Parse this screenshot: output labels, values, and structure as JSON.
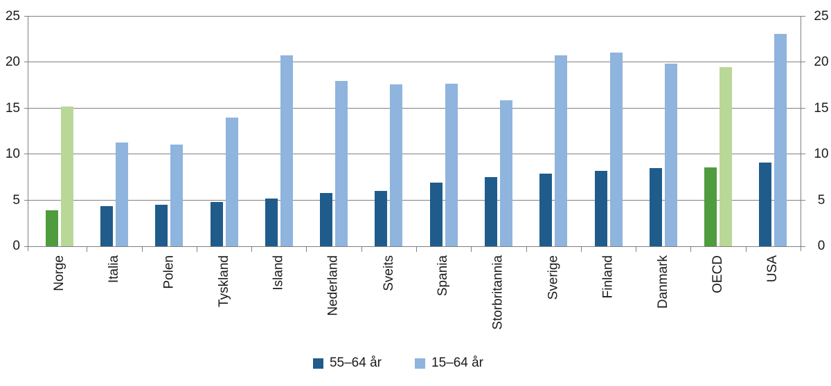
{
  "chart_data": {
    "type": "bar",
    "title": "",
    "categories": [
      "Norge",
      "Italia",
      "Polen",
      "Tyskland",
      "Island",
      "Nederland",
      "Sveits",
      "Spania",
      "Storbritannia",
      "Sverige",
      "Finland",
      "Danmark",
      "OECD",
      "USA"
    ],
    "series": [
      {
        "name": "55–64 år",
        "values": [
          3.9,
          4.4,
          4.5,
          4.8,
          5.2,
          5.8,
          6.0,
          6.9,
          7.5,
          7.9,
          8.2,
          8.5,
          8.6,
          9.1
        ]
      },
      {
        "name": "15–64 år",
        "values": [
          15.2,
          11.3,
          11.1,
          14.0,
          20.8,
          18.0,
          17.6,
          17.7,
          15.9,
          20.8,
          21.1,
          19.9,
          19.5,
          23.1
        ]
      }
    ],
    "highlighted_categories": [
      "Norge",
      "OECD"
    ],
    "ylim": [
      0,
      25
    ],
    "yticks": [
      0,
      5,
      10,
      15,
      20,
      25
    ],
    "y_axis_sides": [
      "left",
      "right"
    ],
    "grid": true,
    "legend_position": "bottom",
    "legend": [
      {
        "label": "55–64 år",
        "color_key": "series_55_64"
      },
      {
        "label": "15–64 år",
        "color_key": "series_15_64"
      }
    ],
    "colors": {
      "series_55_64": "#1f5c8b",
      "series_15_64": "#8fb4dd",
      "highlight_55_64": "#4f9c3f",
      "highlight_15_64": "#b9d897",
      "gridline": "#7f7f7f",
      "text": "#1a1a1a"
    }
  }
}
